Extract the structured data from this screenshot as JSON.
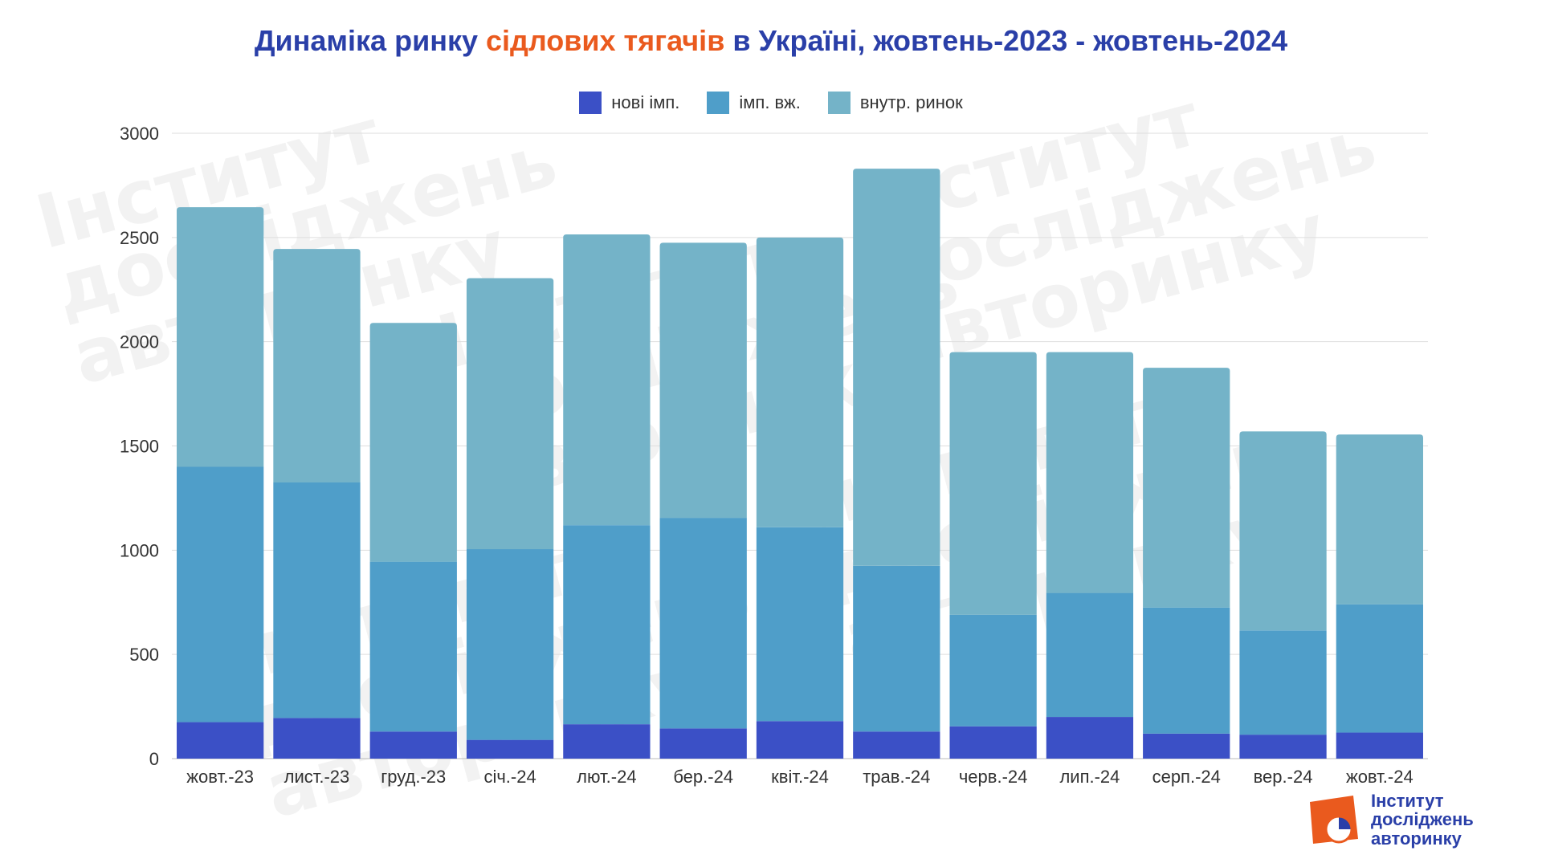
{
  "title": {
    "part1": "Динаміка ринку ",
    "highlight": "сідлових тягачів",
    "part2": " в Україні, жовтень-2023 - жовтень-2024"
  },
  "colors": {
    "title": "#2a3fa8",
    "highlight": "#ea5a1e",
    "grid": "#dddddd",
    "axis_text": "#333333",
    "logo_orange": "#ea5a1e",
    "logo_blue": "#2a3fa8"
  },
  "logo": {
    "line1": "Інститут",
    "line2": "досліджень",
    "line3": "авторинку"
  },
  "watermark_text": "Інститут\nдосліджень\nавторинку",
  "chart_data": {
    "type": "bar",
    "stacked": true,
    "categories": [
      "жовт.-23",
      "лист.-23",
      "груд.-23",
      "січ.-24",
      "лют.-24",
      "бер.-24",
      "квіт.-24",
      "трав.-24",
      "черв.-24",
      "лип.-24",
      "серп.-24",
      "вер.-24",
      "жовт.-24"
    ],
    "series": [
      {
        "name": "нові імп.",
        "color": "#3b50c6",
        "values": [
          175,
          195,
          130,
          90,
          165,
          145,
          180,
          130,
          155,
          200,
          120,
          115,
          125
        ]
      },
      {
        "name": "імп. вж.",
        "color": "#4f9ec9",
        "values": [
          1225,
          1130,
          815,
          915,
          955,
          1010,
          930,
          795,
          535,
          595,
          605,
          500,
          615
        ]
      },
      {
        "name": "внутр. ринок",
        "color": "#74b3c8",
        "values": [
          1245,
          1120,
          1145,
          1300,
          1395,
          1320,
          1390,
          1905,
          1260,
          1155,
          1150,
          955,
          815
        ]
      }
    ],
    "yticks": [
      0,
      500,
      1000,
      1500,
      2000,
      2500,
      3000
    ],
    "ylim": [
      0,
      3000
    ],
    "grid": true,
    "legend_position": "top-center",
    "xlabel": "",
    "ylabel": ""
  }
}
